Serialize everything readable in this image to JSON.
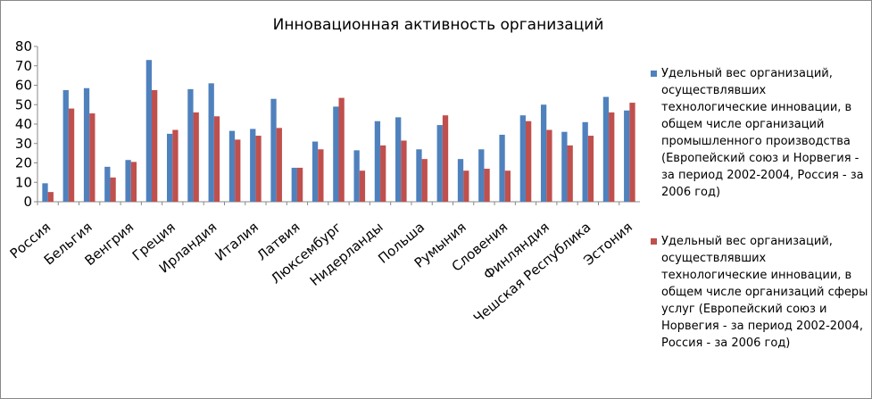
{
  "chart_data": {
    "type": "bar",
    "title": "Инновационная активность организаций",
    "categories": [
      "Россия",
      null,
      "Бельгия",
      null,
      "Венгрия",
      null,
      "Греция",
      null,
      "Ирландия",
      null,
      "Италия",
      null,
      "Латвия",
      null,
      "Люксембург",
      null,
      "Нидерланды",
      null,
      "Польша",
      null,
      "Румыния",
      null,
      "Словения",
      null,
      "Финляндия",
      null,
      "Чешская Республика",
      null,
      "Эстония"
    ],
    "series": [
      {
        "name": "Удельный вес организаций, осуществлявших технологические инновации, в общем числе организаций промышленного производства (Европейский союз и Норвегия - за период 2002-2004, Россия - за 2006 год)",
        "color": "#4f81bd",
        "values": [
          9.5,
          57.5,
          58.5,
          18,
          21.5,
          73,
          35,
          58,
          61,
          36.5,
          37.5,
          53,
          17.5,
          31,
          49,
          26.5,
          41.5,
          43.5,
          27,
          39.5,
          22,
          27,
          34.5,
          44.5,
          50,
          36,
          41,
          54,
          47
        ]
      },
      {
        "name": "Удельный вес организаций, осуществлявших технологические инновации, в общем числе организаций сферы услуг (Европейский союз и Норвегия - за период 2002-2004, Россия - за 2006 год)",
        "color": "#c0504d",
        "values": [
          5,
          48,
          45.5,
          12.5,
          20.5,
          57.5,
          37,
          46,
          44,
          32,
          34,
          38,
          17.5,
          27,
          53.5,
          16,
          29,
          31.5,
          22,
          44.5,
          16,
          17,
          16,
          41.5,
          37,
          29,
          34,
          46,
          51
        ]
      }
    ],
    "ylim": [
      0,
      80
    ],
    "yticks": [
      0,
      10,
      20,
      30,
      40,
      50,
      60,
      70,
      80
    ],
    "legend": "right"
  }
}
